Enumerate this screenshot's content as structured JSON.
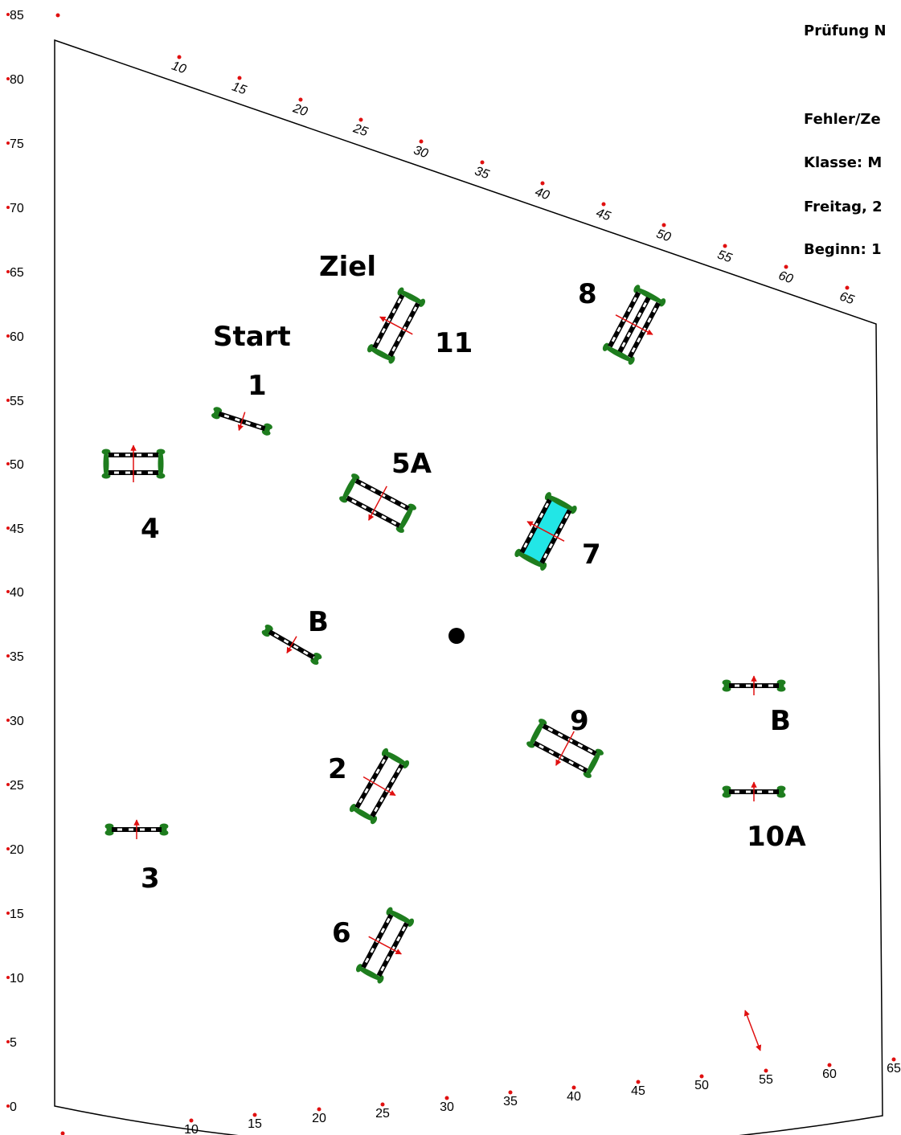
{
  "header": {
    "exam": "Prüfung N",
    "faults": "Fehler/Ze",
    "class": "Klasse: M",
    "day": "Freitag, 2",
    "start_time": "Beginn: 1"
  },
  "left_axis": [
    "85",
    "80",
    "75",
    "70",
    "65",
    "60",
    "55",
    "50",
    "45",
    "40",
    "35",
    "30",
    "25",
    "20",
    "15",
    "10",
    "5",
    "0"
  ],
  "top_axis": [
    "10",
    "15",
    "20",
    "25",
    "30",
    "35",
    "40",
    "45",
    "50",
    "55",
    "60",
    "65"
  ],
  "bottom_axis": [
    "10",
    "15",
    "20",
    "25",
    "30",
    "35",
    "40",
    "45",
    "50",
    "55",
    "60",
    "65"
  ],
  "labels": {
    "start": "Start",
    "finish": "Ziel",
    "j1": "1",
    "j2": "2",
    "j3": "3",
    "j4": "4",
    "j5a": "5A",
    "j6": "6",
    "j7": "7",
    "j8": "8",
    "j9": "9",
    "j10a": "10A",
    "j11": "11",
    "b1": "B",
    "b2": "B"
  },
  "colors": {
    "pole_black": "#000000",
    "pole_white": "#ffffff",
    "wing_green": "#1e7d1e",
    "direction_arrow": "#e01010",
    "water_fill": "#22e6e6",
    "outline": "#000000"
  }
}
